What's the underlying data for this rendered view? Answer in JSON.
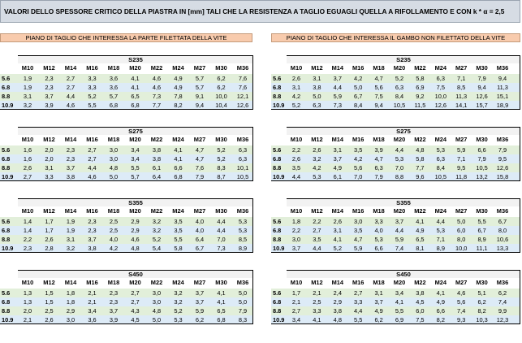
{
  "title": "VALORI DELLO SPESSORE CRITICO DELLA PIASTRA IN [mm] TALI CHE LA RESISTENZA A TAGLIO EGUAGLI QUELLA A RIFOLLAMENTO E CON  k * α = 2,5",
  "left_section": "PIANO DI TAGLIO CHE INTERESSA LA PARTE FILETTATA DELLA VITE",
  "right_section": "PIANO DI TAGLIO CHE INTERESSA IL GAMBO NON FILETTATO DELLA VITE",
  "columns": [
    "M10",
    "M12",
    "M14",
    "M16",
    "M18",
    "M20",
    "M22",
    "M24",
    "M27",
    "M30",
    "M36"
  ],
  "classes": [
    "5.6",
    "6.8",
    "8.8",
    "10.9"
  ],
  "left": [
    {
      "steel": "S235",
      "rows": [
        [
          "1,9",
          "2,3",
          "2,7",
          "3,3",
          "3,6",
          "4,1",
          "4,6",
          "4,9",
          "5,7",
          "6,2",
          "7,6"
        ],
        [
          "1,9",
          "2,3",
          "2,7",
          "3,3",
          "3,6",
          "4,1",
          "4,6",
          "4,9",
          "5,7",
          "6,2",
          "7,6"
        ],
        [
          "3,1",
          "3,7",
          "4,4",
          "5,2",
          "5,7",
          "6,5",
          "7,3",
          "7,8",
          "9,1",
          "10,0",
          "12,1"
        ],
        [
          "3,2",
          "3,9",
          "4,6",
          "5,5",
          "6,8",
          "6,8",
          "7,7",
          "8,2",
          "9,4",
          "10,4",
          "12,6"
        ]
      ]
    },
    {
      "steel": "S275",
      "rows": [
        [
          "1,6",
          "2,0",
          "2,3",
          "2,7",
          "3,0",
          "3,4",
          "3,8",
          "4,1",
          "4,7",
          "5,2",
          "6,3"
        ],
        [
          "1,6",
          "2,0",
          "2,3",
          "2,7",
          "3,0",
          "3,4",
          "3,8",
          "4,1",
          "4,7",
          "5,2",
          "6,3"
        ],
        [
          "2,6",
          "3,1",
          "3,7",
          "4,4",
          "4,8",
          "5,5",
          "6,1",
          "6,6",
          "7,6",
          "8,3",
          "10,1"
        ],
        [
          "2,7",
          "3,3",
          "3,8",
          "4,6",
          "5,0",
          "5,7",
          "6,4",
          "6,8",
          "7,9",
          "8,7",
          "10,5"
        ]
      ]
    },
    {
      "steel": "S355",
      "rows": [
        [
          "1,4",
          "1,7",
          "1,9",
          "2,3",
          "2,5",
          "2,9",
          "3,2",
          "3,5",
          "4,0",
          "4,4",
          "5,3"
        ],
        [
          "1,4",
          "1,7",
          "1,9",
          "2,3",
          "2,5",
          "2,9",
          "3,2",
          "3,5",
          "4,0",
          "4,4",
          "5,3"
        ],
        [
          "2,2",
          "2,6",
          "3,1",
          "3,7",
          "4,0",
          "4,6",
          "5,2",
          "5,5",
          "6,4",
          "7,0",
          "8,5"
        ],
        [
          "2,3",
          "2,8",
          "3,2",
          "3,8",
          "4,2",
          "4,8",
          "5,4",
          "5,8",
          "6,7",
          "7,3",
          "8,9"
        ]
      ]
    },
    {
      "steel": "S450",
      "rows": [
        [
          "1,3",
          "1,5",
          "1,8",
          "2,1",
          "2,3",
          "2,7",
          "3,0",
          "3,2",
          "3,7",
          "4,1",
          "5,0"
        ],
        [
          "1,3",
          "1,5",
          "1,8",
          "2,1",
          "2,3",
          "2,7",
          "3,0",
          "3,2",
          "3,7",
          "4,1",
          "5,0"
        ],
        [
          "2,0",
          "2,5",
          "2,9",
          "3,4",
          "3,7",
          "4,3",
          "4,8",
          "5,2",
          "5,9",
          "6,5",
          "7,9"
        ],
        [
          "2,1",
          "2,6",
          "3,0",
          "3,6",
          "3,9",
          "4,5",
          "5,0",
          "5,3",
          "6,2",
          "6,8",
          "8,3"
        ]
      ]
    }
  ],
  "right": [
    {
      "steel": "S235",
      "rows": [
        [
          "2,6",
          "3,1",
          "3,7",
          "4,2",
          "4,7",
          "5,2",
          "5,8",
          "6,3",
          "7,1",
          "7,9",
          "9,4"
        ],
        [
          "3,1",
          "3,8",
          "4,4",
          "5,0",
          "5,6",
          "6,3",
          "6,9",
          "7,5",
          "8,5",
          "9,4",
          "11,3"
        ],
        [
          "4,2",
          "5,0",
          "5,9",
          "6,7",
          "7,5",
          "8,4",
          "9,2",
          "10,0",
          "11,3",
          "12,6",
          "15,1"
        ],
        [
          "5,2",
          "6,3",
          "7,3",
          "8,4",
          "9,4",
          "10,5",
          "11,5",
          "12,6",
          "14,1",
          "15,7",
          "18,9"
        ]
      ]
    },
    {
      "steel": "S275",
      "rows": [
        [
          "2,2",
          "2,6",
          "3,1",
          "3,5",
          "3,9",
          "4,4",
          "4,8",
          "5,3",
          "5,9",
          "6,6",
          "7,9"
        ],
        [
          "2,6",
          "3,2",
          "3,7",
          "4,2",
          "4,7",
          "5,3",
          "5,8",
          "6,3",
          "7,1",
          "7,9",
          "9,5"
        ],
        [
          "3,5",
          "4,2",
          "4,9",
          "5,6",
          "6,3",
          "7,0",
          "7,7",
          "8,4",
          "9,5",
          "10,5",
          "12,6"
        ],
        [
          "4,4",
          "5,3",
          "6,1",
          "7,0",
          "7,9",
          "8,8",
          "9,6",
          "10,5",
          "11,8",
          "13,2",
          "15,8"
        ]
      ]
    },
    {
      "steel": "S355",
      "rows": [
        [
          "1,8",
          "2,2",
          "2,6",
          "3,0",
          "3,3",
          "3,7",
          "4,1",
          "4,4",
          "5,0",
          "5,5",
          "6,7"
        ],
        [
          "2,2",
          "2,7",
          "3,1",
          "3,5",
          "4,0",
          "4,4",
          "4,9",
          "5,3",
          "6,0",
          "6,7",
          "8,0"
        ],
        [
          "3,0",
          "3,5",
          "4,1",
          "4,7",
          "5,3",
          "5,9",
          "6,5",
          "7,1",
          "8,0",
          "8,9",
          "10,6"
        ],
        [
          "3,7",
          "4,4",
          "5,2",
          "5,9",
          "6,6",
          "7,4",
          "8,1",
          "8,9",
          "10,0",
          "11,1",
          "13,3"
        ]
      ]
    },
    {
      "steel": "S450",
      "rows": [
        [
          "1,7",
          "2,1",
          "2,4",
          "2,7",
          "3,1",
          "3,4",
          "3,8",
          "4,1",
          "4,6",
          "5,1",
          "6,2"
        ],
        [
          "2,1",
          "2,5",
          "2,9",
          "3,3",
          "3,7",
          "4,1",
          "4,5",
          "4,9",
          "5,6",
          "6,2",
          "7,4"
        ],
        [
          "2,7",
          "3,3",
          "3,8",
          "4,4",
          "4,9",
          "5,5",
          "6,0",
          "6,6",
          "7,4",
          "8,2",
          "9,9"
        ],
        [
          "3,4",
          "4,1",
          "4,8",
          "5,5",
          "6,2",
          "6,9",
          "7,5",
          "8,2",
          "9,3",
          "10,3",
          "12,3"
        ]
      ]
    }
  ]
}
